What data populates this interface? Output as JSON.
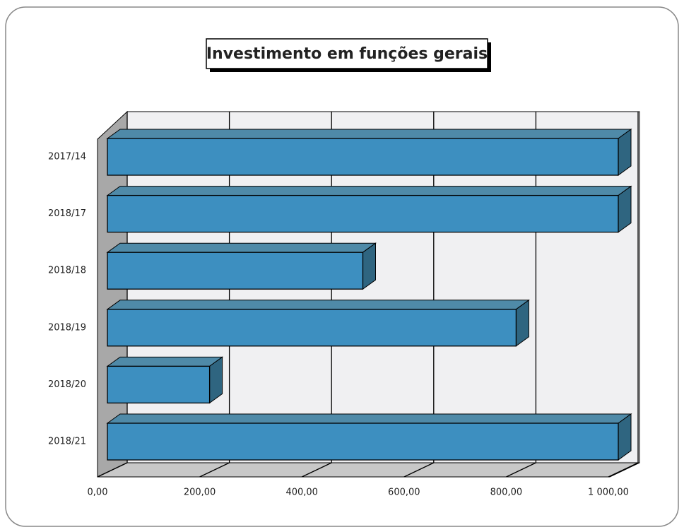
{
  "chart_data": {
    "type": "bar",
    "orientation": "horizontal",
    "title": "Investimento em funções gerais",
    "categories": [
      "2017/14",
      "2018/17",
      "2018/18",
      "2018/19",
      "2018/20",
      "2018/21"
    ],
    "values": [
      1000,
      1000,
      500,
      800,
      200,
      1000
    ],
    "color": "#3d8fc0",
    "xlim": [
      0,
      1000
    ],
    "xticks": [
      {
        "value": 0,
        "label": "0,00"
      },
      {
        "value": 200,
        "label": "200,00"
      },
      {
        "value": 400,
        "label": "400,00"
      },
      {
        "value": 600,
        "label": "600,00"
      },
      {
        "value": 800,
        "label": "800,00"
      },
      {
        "value": 1000,
        "label": "1 000,00"
      }
    ],
    "grid": true
  }
}
